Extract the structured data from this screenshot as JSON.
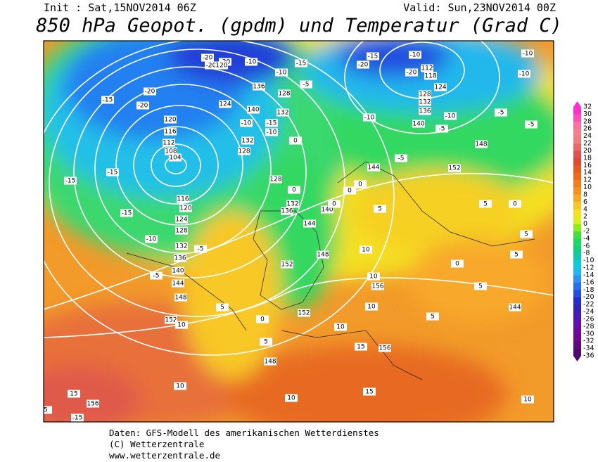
{
  "header": {
    "init": "Init : Sat,15NOV2014 06Z",
    "valid": "Valid: Sun,23NOV2014 00Z",
    "title": "850 hPa Geopot. (gpdm) und Temperatur (Grad C)"
  },
  "legend": {
    "ticks": [
      32,
      30,
      28,
      26,
      24,
      22,
      20,
      18,
      16,
      14,
      12,
      10,
      8,
      6,
      4,
      2,
      0,
      -2,
      -4,
      -6,
      -8,
      -10,
      -12,
      -14,
      -16,
      -18,
      -20,
      -22,
      -24,
      -26,
      -28,
      -30,
      -32,
      -34,
      -36
    ],
    "colors": [
      "#ff2fd0",
      "#ff4fb8",
      "#ff6fa0",
      "#f87f90",
      "#f08080",
      "#e86a6a",
      "#e05050",
      "#e04a30",
      "#e85a20",
      "#ee6a18",
      "#f27e1a",
      "#f6921e",
      "#f8aa22",
      "#fcc426",
      "#f8e020",
      "#d8f020",
      "#90ee18",
      "#40e040",
      "#20d860",
      "#10d080",
      "#10c8b0",
      "#10c8e0",
      "#20b8f0",
      "#3090f0",
      "#2070f0",
      "#2050e0",
      "#2030d0",
      "#3020c0",
      "#4818b8",
      "#6010b0",
      "#7008a0",
      "#700890",
      "#600880",
      "#500870"
    ]
  },
  "map": {
    "labels": [
      -15,
      -20,
      -20,
      -15,
      -15,
      -15,
      -10,
      -5,
      -5,
      -20,
      -20,
      -20,
      -10,
      -15,
      -10,
      -5,
      -15,
      -20,
      -10,
      -10,
      -10,
      -20,
      -10,
      -5,
      -5,
      -10,
      -5,
      -5,
      120,
      136,
      128,
      124,
      140,
      132,
      120,
      116,
      112,
      108,
      104,
      116,
      120,
      124,
      128,
      132,
      136,
      140,
      144,
      148,
      152,
      156,
      140,
      144,
      148,
      152,
      156,
      156,
      152,
      148,
      144,
      148,
      152,
      144,
      140,
      128,
      132,
      136,
      128,
      132,
      112,
      118,
      124,
      128,
      132,
      136,
      0,
      0,
      5,
      5,
      10,
      10,
      10,
      10,
      10,
      15,
      15,
      10,
      10,
      5,
      5,
      5,
      5,
      0,
      0,
      5,
      10,
      15,
      5,
      -15,
      -10,
      -15,
      -10,
      0,
      0,
      5,
      0,
      0
    ]
  },
  "footer": {
    "line1": "Daten: GFS-Modell des amerikanischen Wetterdienstes",
    "line2": "(C) Wetterzentrale",
    "line3": "www.wetterzentrale.de"
  }
}
